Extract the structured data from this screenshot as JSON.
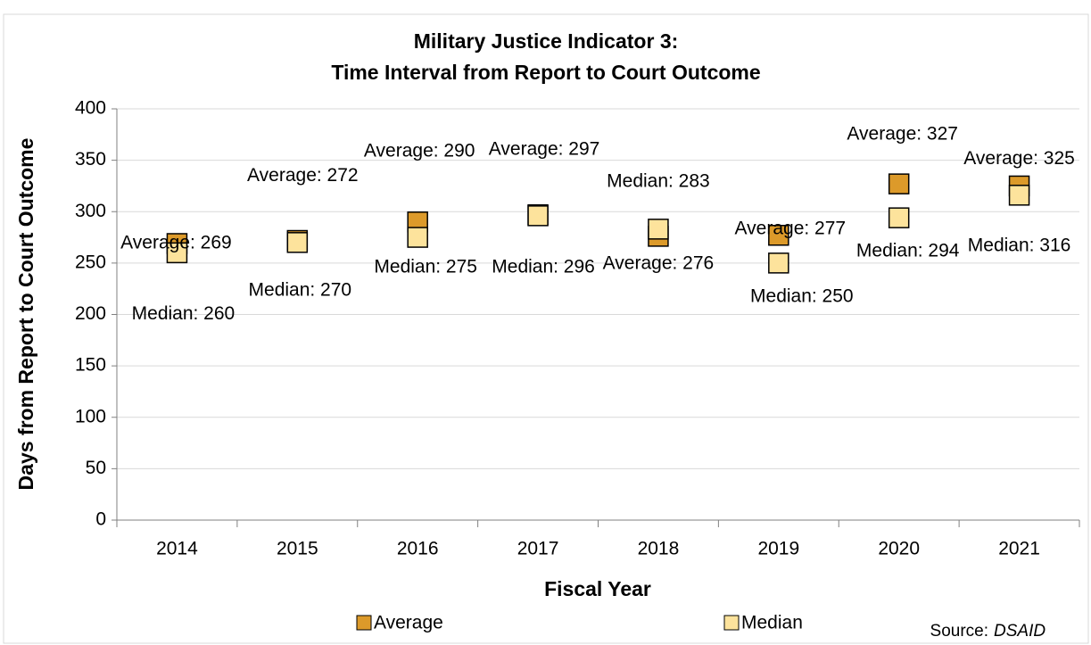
{
  "chart_data": {
    "type": "scatter",
    "title": [
      "Military Justice Indicator 3:",
      "Time Interval from Report to Court Outcome"
    ],
    "y_label": "Days from Report to Court Outcome",
    "x_label": "Fiscal Year",
    "categories": [
      "2014",
      "2015",
      "2016",
      "2017",
      "2018",
      "2019",
      "2020",
      "2021"
    ],
    "series": [
      {
        "name": "Average",
        "color": "#dc9a2a",
        "values": [
          269,
          272,
          290,
          297,
          276,
          277,
          327,
          325
        ],
        "value_labels": [
          "Average: 269",
          "Average: 272",
          "Average: 290",
          "Average: 297",
          "Average: 276",
          "Average: 277",
          "Average: 327",
          "Average: 325"
        ]
      },
      {
        "name": "Median",
        "color": "#fde39c",
        "values": [
          260,
          270,
          275,
          296,
          283,
          250,
          294,
          316
        ],
        "value_labels": [
          "Median: 260",
          "Median: 270",
          "Median: 275",
          "Median: 296",
          "Median: 283",
          "Median: 250",
          "Median: 294",
          "Median: 316"
        ]
      }
    ],
    "ylim": [
      0,
      400
    ],
    "yticks": [
      0,
      50,
      100,
      150,
      200,
      250,
      300,
      350,
      400
    ],
    "grid": true,
    "legend": "bottom",
    "source": {
      "label": "Source:",
      "name": "DSAID"
    }
  }
}
